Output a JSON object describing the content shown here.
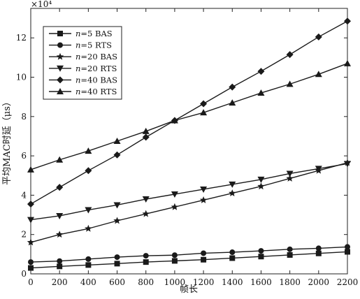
{
  "chart_data": {
    "type": "line",
    "xlabel": "帧长",
    "ylabel": "平均MAC时延（μs）",
    "y_scale_exponent": "×10⁴",
    "xlim": [
      0,
      2200
    ],
    "ylim": [
      0,
      13.5
    ],
    "x_ticks": [
      0,
      200,
      400,
      600,
      800,
      1000,
      1200,
      1400,
      1600,
      1800,
      2000,
      2200
    ],
    "y_ticks": [
      0,
      2,
      4,
      6,
      8,
      10,
      12
    ],
    "x": [
      0,
      200,
      400,
      600,
      800,
      1000,
      1200,
      1400,
      1600,
      1800,
      2000,
      2200
    ],
    "legend_position": "top-left",
    "grid": false,
    "series": [
      {
        "name_prefix": "n",
        "name": "=5 BAS",
        "marker": "square",
        "values": [
          0.3,
          0.38,
          0.45,
          0.52,
          0.6,
          0.66,
          0.72,
          0.8,
          0.88,
          0.96,
          1.04,
          1.12
        ]
      },
      {
        "name_prefix": "n",
        "name": "=5 RTS",
        "marker": "circle",
        "values": [
          0.6,
          0.65,
          0.75,
          0.85,
          0.92,
          0.95,
          1.05,
          1.1,
          1.17,
          1.25,
          1.3,
          1.37
        ]
      },
      {
        "name_prefix": "n",
        "name": "=20 BAS",
        "marker": "star",
        "values": [
          1.6,
          2.0,
          2.3,
          2.7,
          3.05,
          3.4,
          3.75,
          4.1,
          4.45,
          4.85,
          5.25,
          5.65
        ]
      },
      {
        "name_prefix": "n",
        "name": "=20 RTS",
        "marker": "triangle-down",
        "values": [
          2.75,
          2.95,
          3.25,
          3.5,
          3.8,
          4.05,
          4.3,
          4.55,
          4.8,
          5.1,
          5.35,
          5.6
        ]
      },
      {
        "name_prefix": "n",
        "name": "=40 BAS",
        "marker": "diamond",
        "values": [
          3.55,
          4.4,
          5.25,
          6.05,
          6.95,
          7.8,
          8.65,
          9.5,
          10.3,
          11.15,
          12.05,
          12.85
        ]
      },
      {
        "name_prefix": "n",
        "name": "=40 RTS",
        "marker": "triangle-up",
        "values": [
          5.3,
          5.8,
          6.25,
          6.75,
          7.25,
          7.8,
          8.2,
          8.7,
          9.2,
          9.65,
          10.15,
          10.7
        ]
      }
    ]
  }
}
